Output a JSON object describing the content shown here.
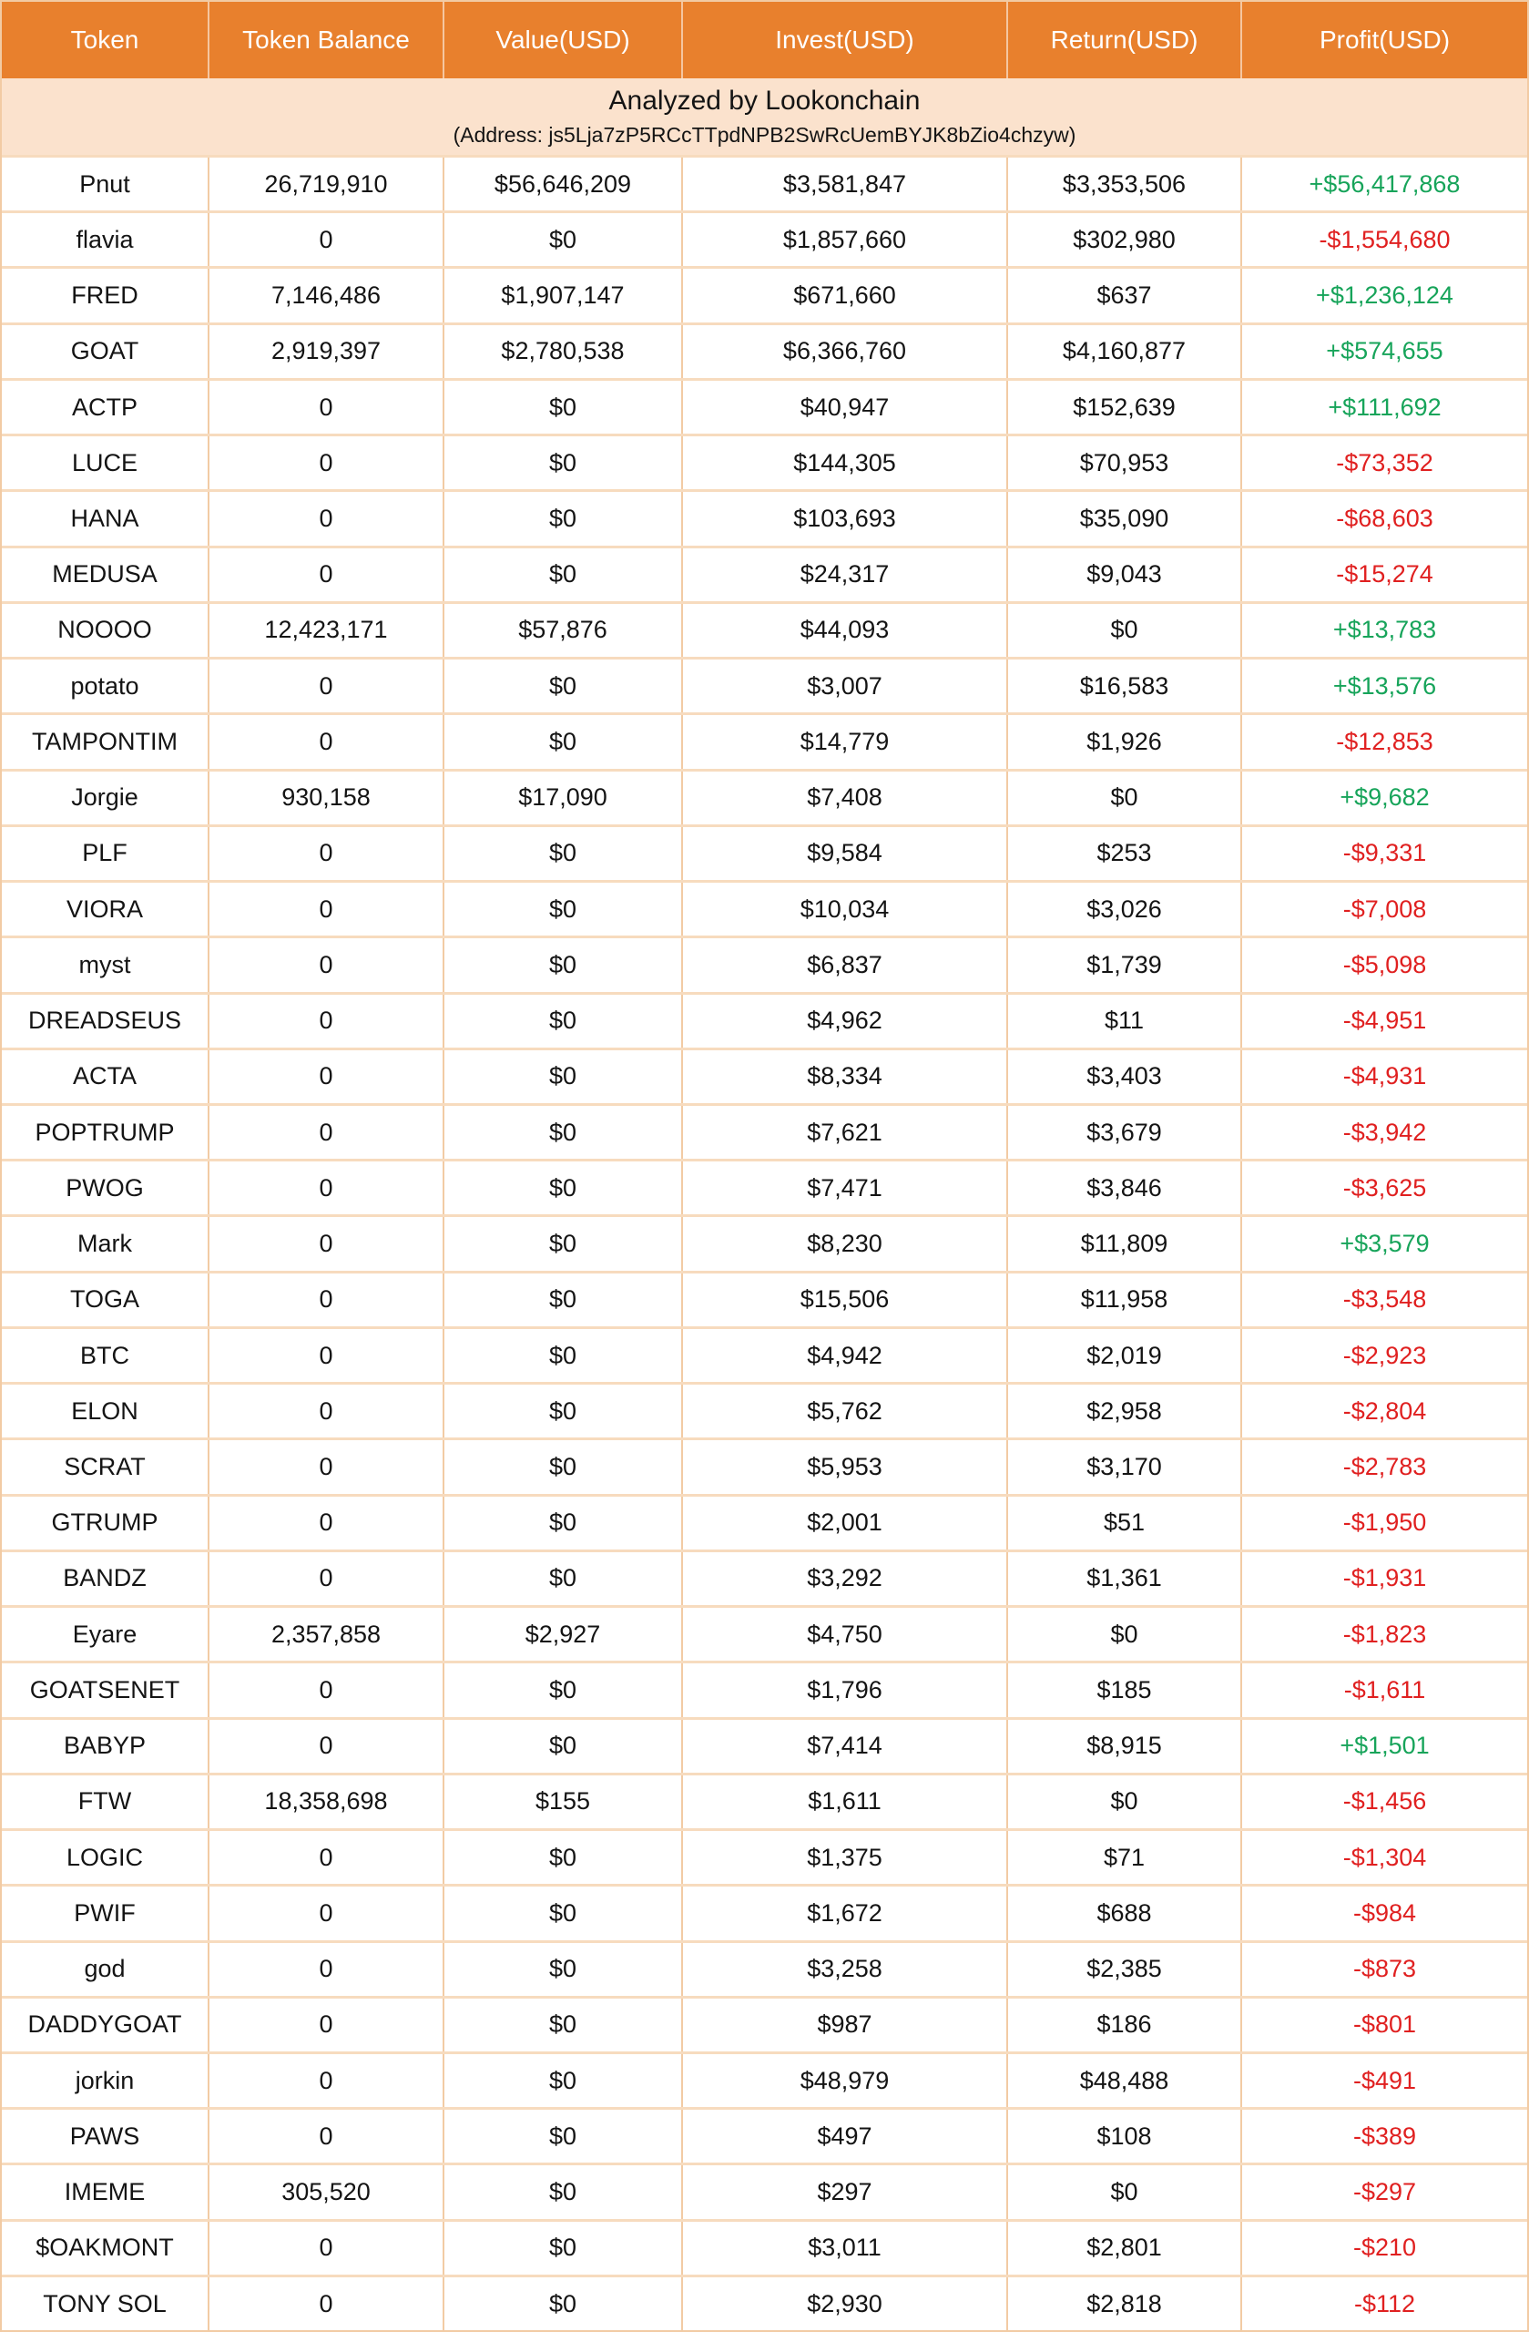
{
  "banner": {
    "title": "Analyzed by Lookonchain",
    "address": "(Address: js5Lja7zP5RCcTTpdNPB2SwRcUemBYJK8bZio4chzyw)"
  },
  "colors": {
    "header_bg": "#E8802D",
    "banner_bg": "#FBE2CD",
    "grid_border": "#F2CBA4",
    "row_separator": "#F7DBBE",
    "profit_positive": "#17A45A",
    "profit_negative": "#E02020"
  },
  "chart_data": {
    "type": "table",
    "title": "Analyzed by Lookonchain",
    "subtitle": "(Address: js5Lja7zP5RCcTTpdNPB2SwRcUemBYJK8bZio4chzyw)",
    "columns": [
      "Token",
      "Token Balance",
      "Value(USD)",
      "Invest(USD)",
      "Return(USD)",
      "Profit(USD)"
    ],
    "rows": [
      {
        "token": "Pnut",
        "balance": "26,719,910",
        "value": "$56,646,209",
        "invest": "$3,581,847",
        "return": "$3,353,506",
        "profit": "+$56,417,868"
      },
      {
        "token": "flavia",
        "balance": "0",
        "value": "$0",
        "invest": "$1,857,660",
        "return": "$302,980",
        "profit": "-$1,554,680"
      },
      {
        "token": "FRED",
        "balance": "7,146,486",
        "value": "$1,907,147",
        "invest": "$671,660",
        "return": "$637",
        "profit": "+$1,236,124"
      },
      {
        "token": "GOAT",
        "balance": "2,919,397",
        "value": "$2,780,538",
        "invest": "$6,366,760",
        "return": "$4,160,877",
        "profit": "+$574,655"
      },
      {
        "token": "ACTP",
        "balance": "0",
        "value": "$0",
        "invest": "$40,947",
        "return": "$152,639",
        "profit": "+$111,692"
      },
      {
        "token": "LUCE",
        "balance": "0",
        "value": "$0",
        "invest": "$144,305",
        "return": "$70,953",
        "profit": "-$73,352"
      },
      {
        "token": "HANA",
        "balance": "0",
        "value": "$0",
        "invest": "$103,693",
        "return": "$35,090",
        "profit": "-$68,603"
      },
      {
        "token": "MEDUSA",
        "balance": "0",
        "value": "$0",
        "invest": "$24,317",
        "return": "$9,043",
        "profit": "-$15,274"
      },
      {
        "token": "NOOOO",
        "balance": "12,423,171",
        "value": "$57,876",
        "invest": "$44,093",
        "return": "$0",
        "profit": "+$13,783"
      },
      {
        "token": "potato",
        "balance": "0",
        "value": "$0",
        "invest": "$3,007",
        "return": "$16,583",
        "profit": "+$13,576"
      },
      {
        "token": "TAMPONTIM",
        "balance": "0",
        "value": "$0",
        "invest": "$14,779",
        "return": "$1,926",
        "profit": "-$12,853"
      },
      {
        "token": "Jorgie",
        "balance": "930,158",
        "value": "$17,090",
        "invest": "$7,408",
        "return": "$0",
        "profit": "+$9,682"
      },
      {
        "token": "PLF",
        "balance": "0",
        "value": "$0",
        "invest": "$9,584",
        "return": "$253",
        "profit": "-$9,331"
      },
      {
        "token": "VIORA",
        "balance": "0",
        "value": "$0",
        "invest": "$10,034",
        "return": "$3,026",
        "profit": "-$7,008"
      },
      {
        "token": "myst",
        "balance": "0",
        "value": "$0",
        "invest": "$6,837",
        "return": "$1,739",
        "profit": "-$5,098"
      },
      {
        "token": "DREADSEUS",
        "balance": "0",
        "value": "$0",
        "invest": "$4,962",
        "return": "$11",
        "profit": "-$4,951"
      },
      {
        "token": "ACTA",
        "balance": "0",
        "value": "$0",
        "invest": "$8,334",
        "return": "$3,403",
        "profit": "-$4,931"
      },
      {
        "token": "POPTRUMP",
        "balance": "0",
        "value": "$0",
        "invest": "$7,621",
        "return": "$3,679",
        "profit": "-$3,942"
      },
      {
        "token": "PWOG",
        "balance": "0",
        "value": "$0",
        "invest": "$7,471",
        "return": "$3,846",
        "profit": "-$3,625"
      },
      {
        "token": "Mark",
        "balance": "0",
        "value": "$0",
        "invest": "$8,230",
        "return": "$11,809",
        "profit": "+$3,579"
      },
      {
        "token": "TOGA",
        "balance": "0",
        "value": "$0",
        "invest": "$15,506",
        "return": "$11,958",
        "profit": "-$3,548"
      },
      {
        "token": "BTC",
        "balance": "0",
        "value": "$0",
        "invest": "$4,942",
        "return": "$2,019",
        "profit": "-$2,923"
      },
      {
        "token": "ELON",
        "balance": "0",
        "value": "$0",
        "invest": "$5,762",
        "return": "$2,958",
        "profit": "-$2,804"
      },
      {
        "token": "SCRAT",
        "balance": "0",
        "value": "$0",
        "invest": "$5,953",
        "return": "$3,170",
        "profit": "-$2,783"
      },
      {
        "token": "GTRUMP",
        "balance": "0",
        "value": "$0",
        "invest": "$2,001",
        "return": "$51",
        "profit": "-$1,950"
      },
      {
        "token": "BANDZ",
        "balance": "0",
        "value": "$0",
        "invest": "$3,292",
        "return": "$1,361",
        "profit": "-$1,931"
      },
      {
        "token": "Eyare",
        "balance": "2,357,858",
        "value": "$2,927",
        "invest": "$4,750",
        "return": "$0",
        "profit": "-$1,823"
      },
      {
        "token": "GOATSENET",
        "balance": "0",
        "value": "$0",
        "invest": "$1,796",
        "return": "$185",
        "profit": "-$1,611"
      },
      {
        "token": "BABYP",
        "balance": "0",
        "value": "$0",
        "invest": "$7,414",
        "return": "$8,915",
        "profit": "+$1,501"
      },
      {
        "token": "FTW",
        "balance": "18,358,698",
        "value": "$155",
        "invest": "$1,611",
        "return": "$0",
        "profit": "-$1,456"
      },
      {
        "token": "LOGIC",
        "balance": "0",
        "value": "$0",
        "invest": "$1,375",
        "return": "$71",
        "profit": "-$1,304"
      },
      {
        "token": "PWIF",
        "balance": "0",
        "value": "$0",
        "invest": "$1,672",
        "return": "$688",
        "profit": "-$984"
      },
      {
        "token": "god",
        "balance": "0",
        "value": "$0",
        "invest": "$3,258",
        "return": "$2,385",
        "profit": "-$873"
      },
      {
        "token": "DADDYGOAT",
        "balance": "0",
        "value": "$0",
        "invest": "$987",
        "return": "$186",
        "profit": "-$801"
      },
      {
        "token": "jorkin",
        "balance": "0",
        "value": "$0",
        "invest": "$48,979",
        "return": "$48,488",
        "profit": "-$491"
      },
      {
        "token": "PAWS",
        "balance": "0",
        "value": "$0",
        "invest": "$497",
        "return": "$108",
        "profit": "-$389"
      },
      {
        "token": "IMEME",
        "balance": "305,520",
        "value": "$0",
        "invest": "$297",
        "return": "$0",
        "profit": "-$297"
      },
      {
        "token": "$OAKMONT",
        "balance": "0",
        "value": "$0",
        "invest": "$3,011",
        "return": "$2,801",
        "profit": "-$210"
      },
      {
        "token": "TONY SOL",
        "balance": "0",
        "value": "$0",
        "invest": "$2,930",
        "return": "$2,818",
        "profit": "-$112"
      }
    ]
  }
}
